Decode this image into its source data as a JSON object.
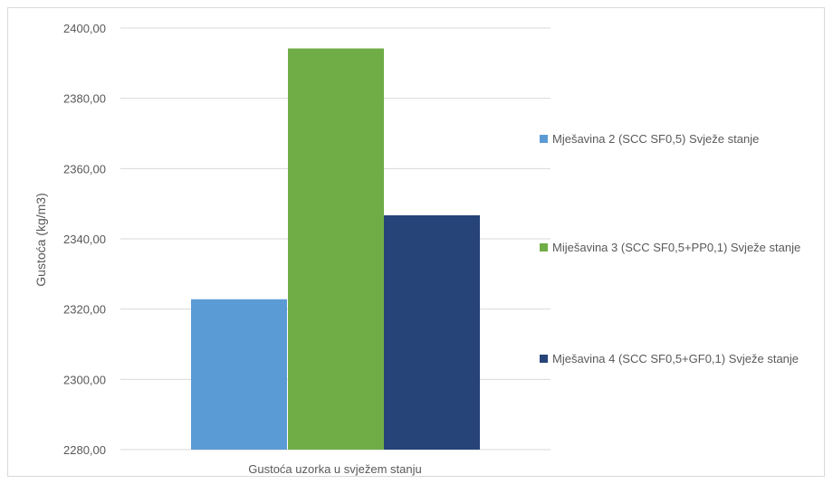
{
  "chart_data": {
    "type": "bar",
    "title": "",
    "xlabel": "",
    "ylabel": "Gustoća (kg/m3)",
    "categories": [
      "Gustoća uzorka u svježem stanju"
    ],
    "ylim": [
      2280,
      2400
    ],
    "yticks": [
      "2280,00",
      "2300,00",
      "2320,00",
      "2340,00",
      "2360,00",
      "2380,00",
      "2400,00"
    ],
    "grid": true,
    "legend_position": "right",
    "series": [
      {
        "name": "Mješavina 2 (SCC SF0,5) Svježe stanje",
        "values": [
          2322.8
        ],
        "color": "#5b9bd5"
      },
      {
        "name": "Miješavina 3 (SCC SF0,5+PP0,1) Svježe stanje",
        "values": [
          2394.2
        ],
        "color": "#70ad47"
      },
      {
        "name": "Mješavina 4 (SCC SF0,5+GF0,1) Svježe stanje",
        "values": [
          2346.7
        ],
        "color": "#264478"
      }
    ]
  }
}
